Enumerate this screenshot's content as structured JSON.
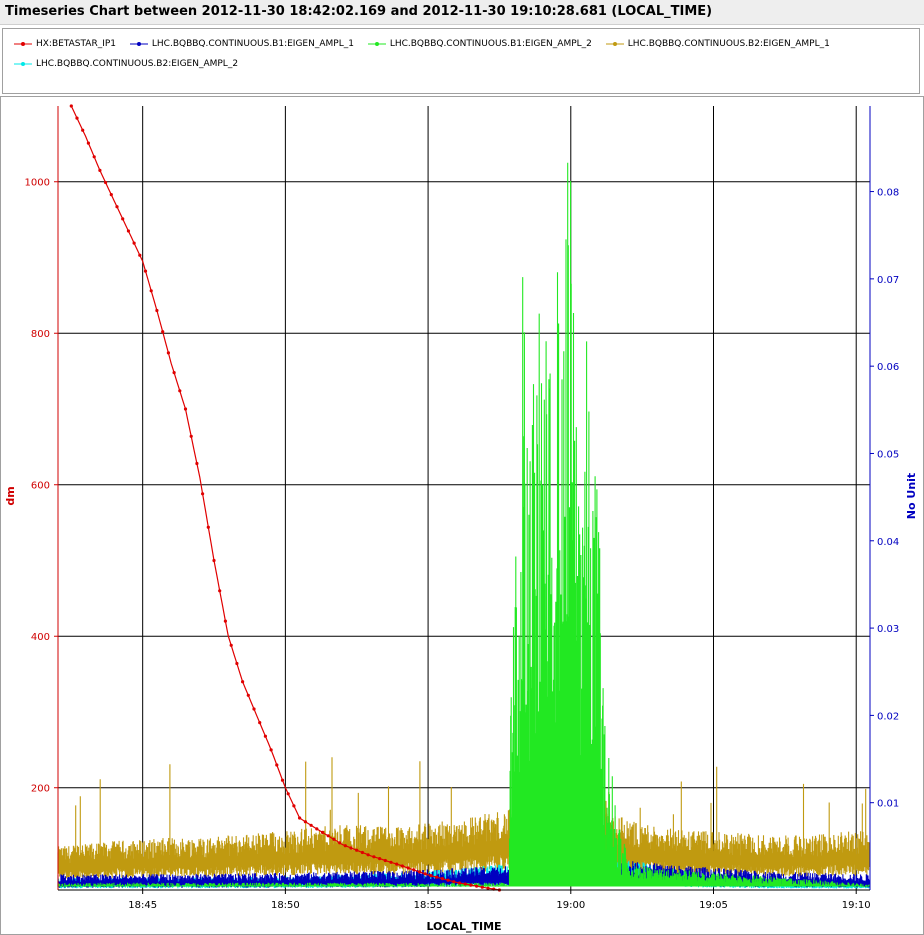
{
  "window": {
    "title": "Timeseries Chart between 2012-11-30 18:42:02.169 and 2012-11-30 19:10:28.681 (LOCAL_TIME)"
  },
  "legend": {
    "items": [
      {
        "label": "HX:BETASTAR_IP1",
        "color": "#e00000"
      },
      {
        "label": "LHC.BQBBQ.CONTINUOUS.B1:EIGEN_AMPL_1",
        "color": "#0000c0"
      },
      {
        "label": "LHC.BQBBQ.CONTINUOUS.B1:EIGEN_AMPL_2",
        "color": "#22e822"
      },
      {
        "label": "LHC.BQBBQ.CONTINUOUS.B2:EIGEN_AMPL_1",
        "color": "#c09a10"
      },
      {
        "label": "LHC.BQBBQ.CONTINUOUS.B2:EIGEN_AMPL_2",
        "color": "#00e8e8"
      }
    ]
  },
  "chart_data": {
    "type": "line",
    "title": "Timeseries Chart between 2012-11-30 18:42:02.169 and 2012-11-30 19:10:28.681 (LOCAL_TIME)",
    "xlabel": "LOCAL_TIME",
    "ylabel_left": "dm",
    "ylabel_right": "No Unit",
    "x_ticks": [
      "18:45",
      "18:50",
      "18:55",
      "19:00",
      "19:05",
      "19:10"
    ],
    "xlim": [
      "18:42:02",
      "19:10:29"
    ],
    "ylim_left": [
      65,
      1100
    ],
    "yticks_left": [
      200,
      400,
      600,
      800,
      1000
    ],
    "ylim_right": [
      0,
      0.0898
    ],
    "yticks_right": [
      0.01,
      0.02,
      0.03,
      0.04,
      0.05,
      0.06,
      0.07,
      0.08
    ],
    "grid": true,
    "legend_position": "top",
    "series": [
      {
        "name": "HX:BETASTAR_IP1",
        "axis": "left",
        "x": [
          "18:42:30",
          "18:43:00",
          "18:43:30",
          "18:44:00",
          "18:44:30",
          "18:45:00",
          "18:45:30",
          "18:46:00",
          "18:46:30",
          "18:47:00",
          "18:47:30",
          "18:48:00",
          "18:48:30",
          "18:49:00",
          "18:49:30",
          "18:50:00",
          "18:50:30",
          "18:51:00",
          "18:52:00",
          "18:53:00",
          "18:54:00",
          "18:55:00",
          "18:56:00",
          "18:57:00",
          "18:58:00"
        ],
        "y": [
          1100,
          1060,
          1015,
          975,
          935,
          895,
          830,
          760,
          700,
          610,
          500,
          400,
          340,
          295,
          250,
          200,
          160,
          148,
          125,
          110,
          98,
          85,
          75,
          68,
          62
        ]
      },
      {
        "name": "LHC.BQBBQ.CONTINUOUS.B1:EIGEN_AMPL_1",
        "axis": "right",
        "x": [
          "18:42:02",
          "18:46:00",
          "18:50:00",
          "18:54:00",
          "18:58:00",
          "19:00:00",
          "19:01:00",
          "19:04:00",
          "19:07:00",
          "19:10:29"
        ],
        "y": [
          0.0013,
          0.0013,
          0.0014,
          0.0016,
          0.002,
          0.0023,
          0.0026,
          0.002,
          0.0015,
          0.0013
        ]
      },
      {
        "name": "LHC.BQBBQ.CONTINUOUS.B1:EIGEN_AMPL_2",
        "axis": "right",
        "x": [
          "18:42:02",
          "18:57:50",
          "18:58:00",
          "18:58:10",
          "18:58:20",
          "18:58:30",
          "18:58:45",
          "18:59:00",
          "18:59:15",
          "18:59:30",
          "18:59:40",
          "18:59:50",
          "19:00:00",
          "19:00:15",
          "19:00:30",
          "19:00:45",
          "19:01:00",
          "19:01:10",
          "19:02:00",
          "19:10:29"
        ],
        "y": [
          0.0006,
          0.0006,
          0.055,
          0.03,
          0.0898,
          0.045,
          0.065,
          0.07,
          0.06,
          0.08,
          0.055,
          0.088,
          0.083,
          0.055,
          0.068,
          0.048,
          0.05,
          0.02,
          0.002,
          0.0005
        ]
      },
      {
        "name": "LHC.BQBBQ.CONTINUOUS.B2:EIGEN_AMPL_1",
        "axis": "right",
        "x": [
          "18:42:02",
          "18:44:00",
          "18:46:00",
          "18:48:00",
          "18:50:00",
          "18:52:00",
          "18:54:00",
          "18:56:00",
          "18:58:00",
          "19:00:00",
          "19:02:00",
          "19:04:00",
          "19:06:00",
          "19:08:00",
          "19:10:29"
        ],
        "y": [
          0.004,
          0.0045,
          0.0048,
          0.005,
          0.0055,
          0.006,
          0.0058,
          0.0065,
          0.0075,
          0.0085,
          0.0065,
          0.0055,
          0.0052,
          0.005,
          0.0055
        ]
      },
      {
        "name": "LHC.BQBBQ.CONTINUOUS.B2:EIGEN_AMPL_2",
        "axis": "right",
        "x": [
          "18:42:02",
          "18:46:00",
          "18:50:00",
          "18:54:00",
          "18:58:00",
          "19:00:00",
          "19:01:00",
          "19:04:00",
          "19:07:00",
          "19:10:29"
        ],
        "y": [
          0.001,
          0.001,
          0.0011,
          0.0014,
          0.0022,
          0.0028,
          0.003,
          0.0016,
          0.0009,
          0.0008
        ]
      }
    ]
  }
}
